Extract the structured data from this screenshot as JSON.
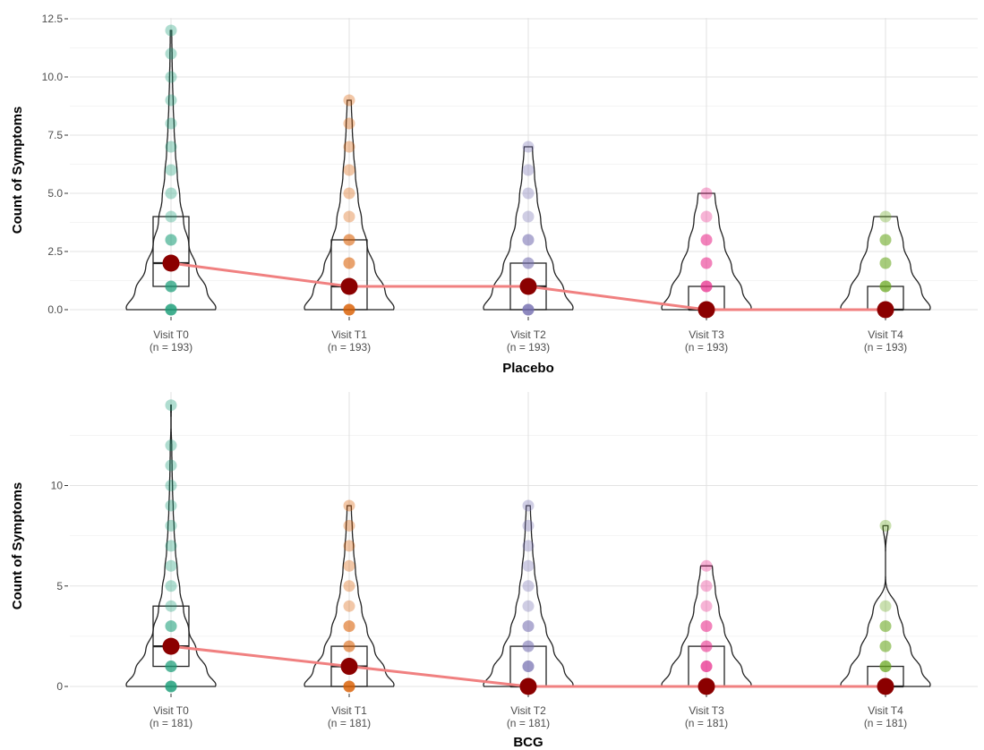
{
  "chart_data": [
    {
      "type": "violin-box-dot",
      "xlabel": "Placebo",
      "ylabel": "Count of Symptoms",
      "ylim": [
        0,
        12.5
      ],
      "yticks": [
        "0.0",
        "2.5",
        "5.0",
        "7.5",
        "10.0",
        "12.5"
      ],
      "categories": [
        "Visit T0",
        "Visit T1",
        "Visit T2",
        "Visit T3",
        "Visit T4"
      ],
      "n_labels": [
        "(n = 193)",
        "(n = 193)",
        "(n = 193)",
        "(n = 193)",
        "(n = 193)"
      ],
      "colors": [
        "#1b9e77",
        "#d95f02",
        "#7570b3",
        "#e7298a",
        "#66a61e"
      ],
      "median_line_color": "#f08080",
      "median_point_color": "#8b0000",
      "medians": [
        2,
        1,
        1,
        0,
        0
      ],
      "boxes": [
        {
          "q1": 1,
          "median": 2,
          "q3": 4
        },
        {
          "q1": 0,
          "median": 1,
          "q3": 3
        },
        {
          "q1": 0,
          "median": 1,
          "q3": 2
        },
        {
          "q1": 0,
          "median": 0,
          "q3": 1
        },
        {
          "q1": 0,
          "median": 0,
          "q3": 1
        }
      ],
      "points": [
        [
          0,
          1,
          2,
          3,
          4,
          5,
          6,
          7,
          8,
          9,
          10,
          11,
          12
        ],
        [
          0,
          1,
          2,
          3,
          4,
          5,
          6,
          7,
          8,
          9
        ],
        [
          0,
          1,
          2,
          3,
          4,
          5,
          6,
          7
        ],
        [
          0,
          1,
          2,
          3,
          4,
          5
        ],
        [
          0,
          1,
          2,
          3,
          4
        ]
      ]
    },
    {
      "type": "violin-box-dot",
      "xlabel": "BCG",
      "ylabel": "Count of Symptoms",
      "ylim": [
        0,
        14
      ],
      "yticks": [
        "0",
        "5",
        "10"
      ],
      "categories": [
        "Visit T0",
        "Visit T1",
        "Visit T2",
        "Visit T3",
        "Visit T4"
      ],
      "n_labels": [
        "(n = 181)",
        "(n = 181)",
        "(n = 181)",
        "(n = 181)",
        "(n = 181)"
      ],
      "colors": [
        "#1b9e77",
        "#d95f02",
        "#7570b3",
        "#e7298a",
        "#66a61e"
      ],
      "median_line_color": "#f08080",
      "median_point_color": "#8b0000",
      "medians": [
        2,
        1,
        0,
        0,
        0
      ],
      "boxes": [
        {
          "q1": 1,
          "median": 2,
          "q3": 4
        },
        {
          "q1": 0,
          "median": 1,
          "q3": 2
        },
        {
          "q1": 0,
          "median": 0,
          "q3": 2
        },
        {
          "q1": 0,
          "median": 0,
          "q3": 2
        },
        {
          "q1": 0,
          "median": 0,
          "q3": 1
        }
      ],
      "points": [
        [
          0,
          1,
          2,
          3,
          4,
          5,
          6,
          7,
          8,
          9,
          10,
          11,
          12,
          14
        ],
        [
          0,
          1,
          2,
          3,
          4,
          5,
          6,
          7,
          8,
          9
        ],
        [
          0,
          1,
          2,
          3,
          4,
          5,
          6,
          7,
          8,
          9
        ],
        [
          0,
          1,
          2,
          3,
          4,
          5,
          6
        ],
        [
          0,
          1,
          2,
          3,
          4,
          8
        ]
      ]
    }
  ]
}
